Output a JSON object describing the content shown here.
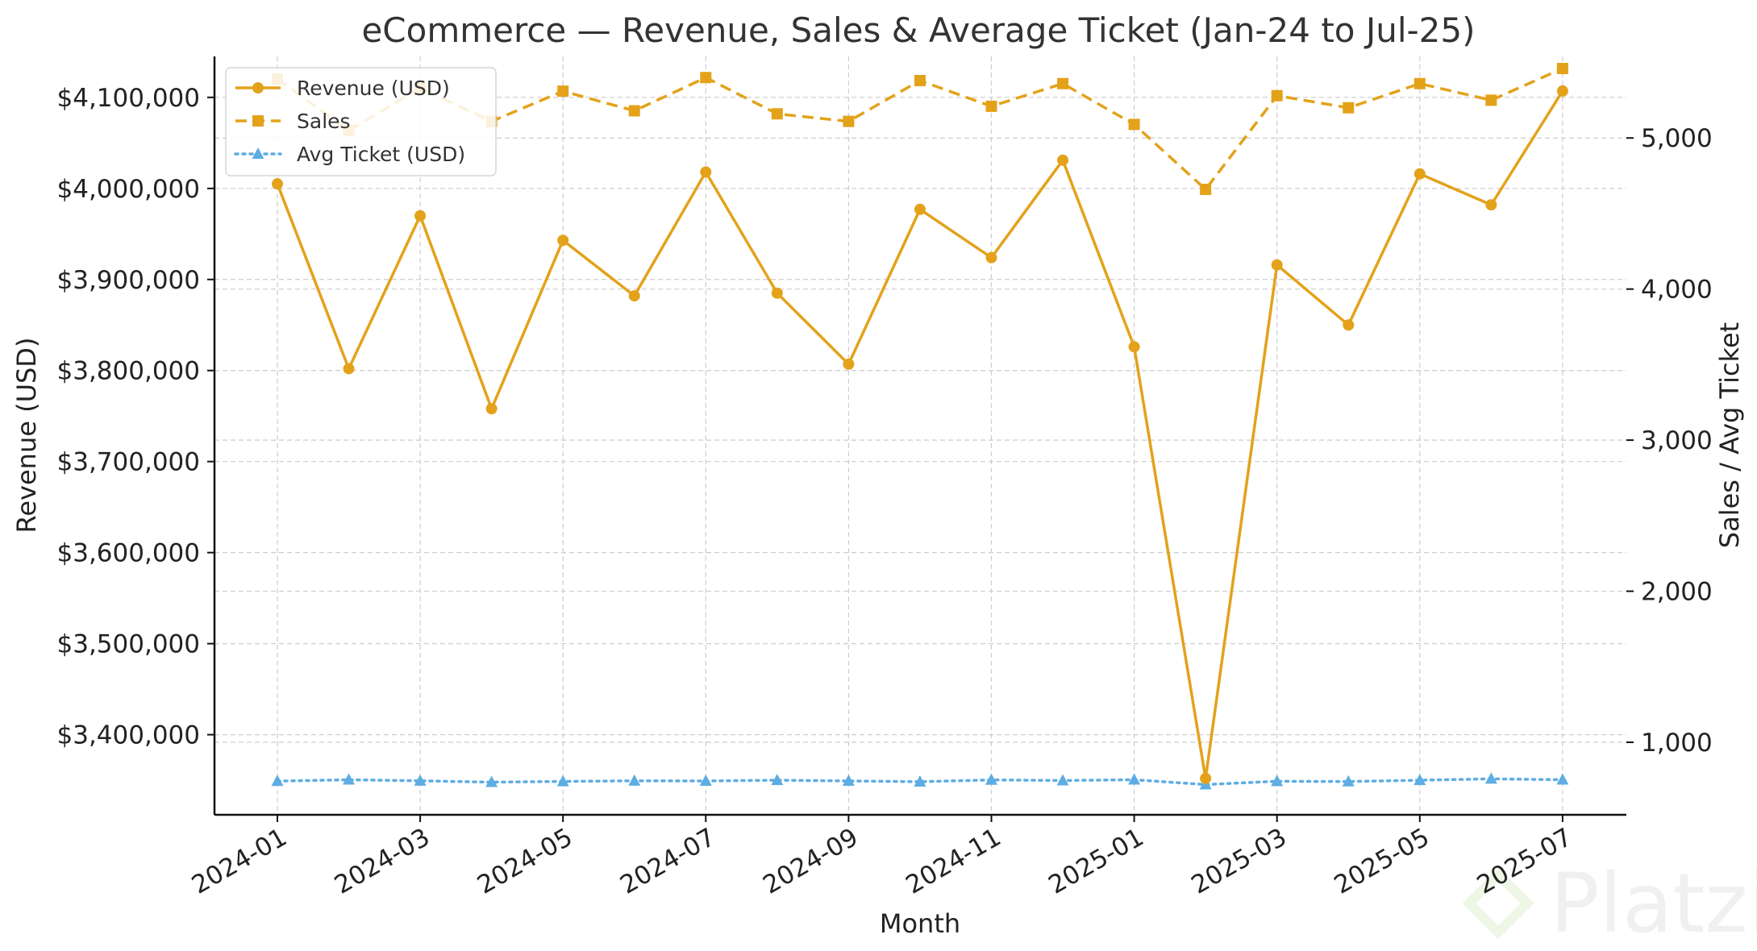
{
  "chart_data": {
    "type": "line",
    "title": "eCommerce — Revenue, Sales & Average Ticket (Jan-24 to Jul-25)",
    "xlabel": "Month",
    "ylabel_left": "Revenue (USD)",
    "ylabel_right": "Sales / Avg Ticket",
    "x": [
      "2024-01",
      "2024-02",
      "2024-03",
      "2024-04",
      "2024-05",
      "2024-06",
      "2024-07",
      "2024-08",
      "2024-09",
      "2024-10",
      "2024-11",
      "2024-12",
      "2025-01",
      "2025-02",
      "2025-03",
      "2025-04",
      "2025-05",
      "2025-06",
      "2025-07"
    ],
    "x_tick_labels": [
      "2024-01",
      "2024-03",
      "2024-05",
      "2024-07",
      "2024-09",
      "2024-11",
      "2025-01",
      "2025-03",
      "2025-05",
      "2025-07"
    ],
    "ylim_left": [
      3312000,
      4145000
    ],
    "ylim_right": [
      520,
      5540
    ],
    "yticks_left": [
      3400000,
      3500000,
      3600000,
      3700000,
      3800000,
      3900000,
      4000000,
      4100000
    ],
    "yticks_left_labels": [
      "$3,400,000",
      "$3,500,000",
      "$3,600,000",
      "$3,700,000",
      "$3,800,000",
      "$3,900,000",
      "$4,000,000",
      "$4,100,000"
    ],
    "yticks_right": [
      1000,
      2000,
      3000,
      4000,
      5000
    ],
    "yticks_right_labels": [
      "1,000",
      "2,000",
      "3,000",
      "4,000",
      "5,000"
    ],
    "grid": true,
    "legend_position": "top-left",
    "series": [
      {
        "name": "Revenue (USD)",
        "axis": "left",
        "style": "solid",
        "marker": "circle",
        "color": "#E3A21A",
        "values": [
          4005000,
          3802000,
          3970000,
          3758000,
          3943000,
          3882000,
          4018000,
          3885000,
          3807000,
          3977000,
          3924000,
          4031000,
          3826000,
          3352000,
          3916000,
          3850000,
          4016000,
          3982000,
          4107000
        ]
      },
      {
        "name": "Sales",
        "axis": "right",
        "style": "dashed",
        "marker": "square",
        "color": "#E3A21A",
        "values": [
          5390,
          5050,
          5330,
          5110,
          5310,
          5180,
          5400,
          5160,
          5110,
          5380,
          5210,
          5360,
          5090,
          4660,
          5280,
          5200,
          5360,
          5250,
          5460
        ]
      },
      {
        "name": "Avg Ticket (USD)",
        "axis": "right",
        "style": "dotted",
        "marker": "triangle",
        "color": "#5DADE2",
        "values": [
          743,
          752,
          745,
          736,
          741,
          745,
          744,
          749,
          744,
          739,
          751,
          747,
          752,
          720,
          742,
          740,
          749,
          758,
          752
        ]
      }
    ]
  },
  "watermark": {
    "text": "Platzi",
    "icon": "platzi-logo-icon"
  }
}
